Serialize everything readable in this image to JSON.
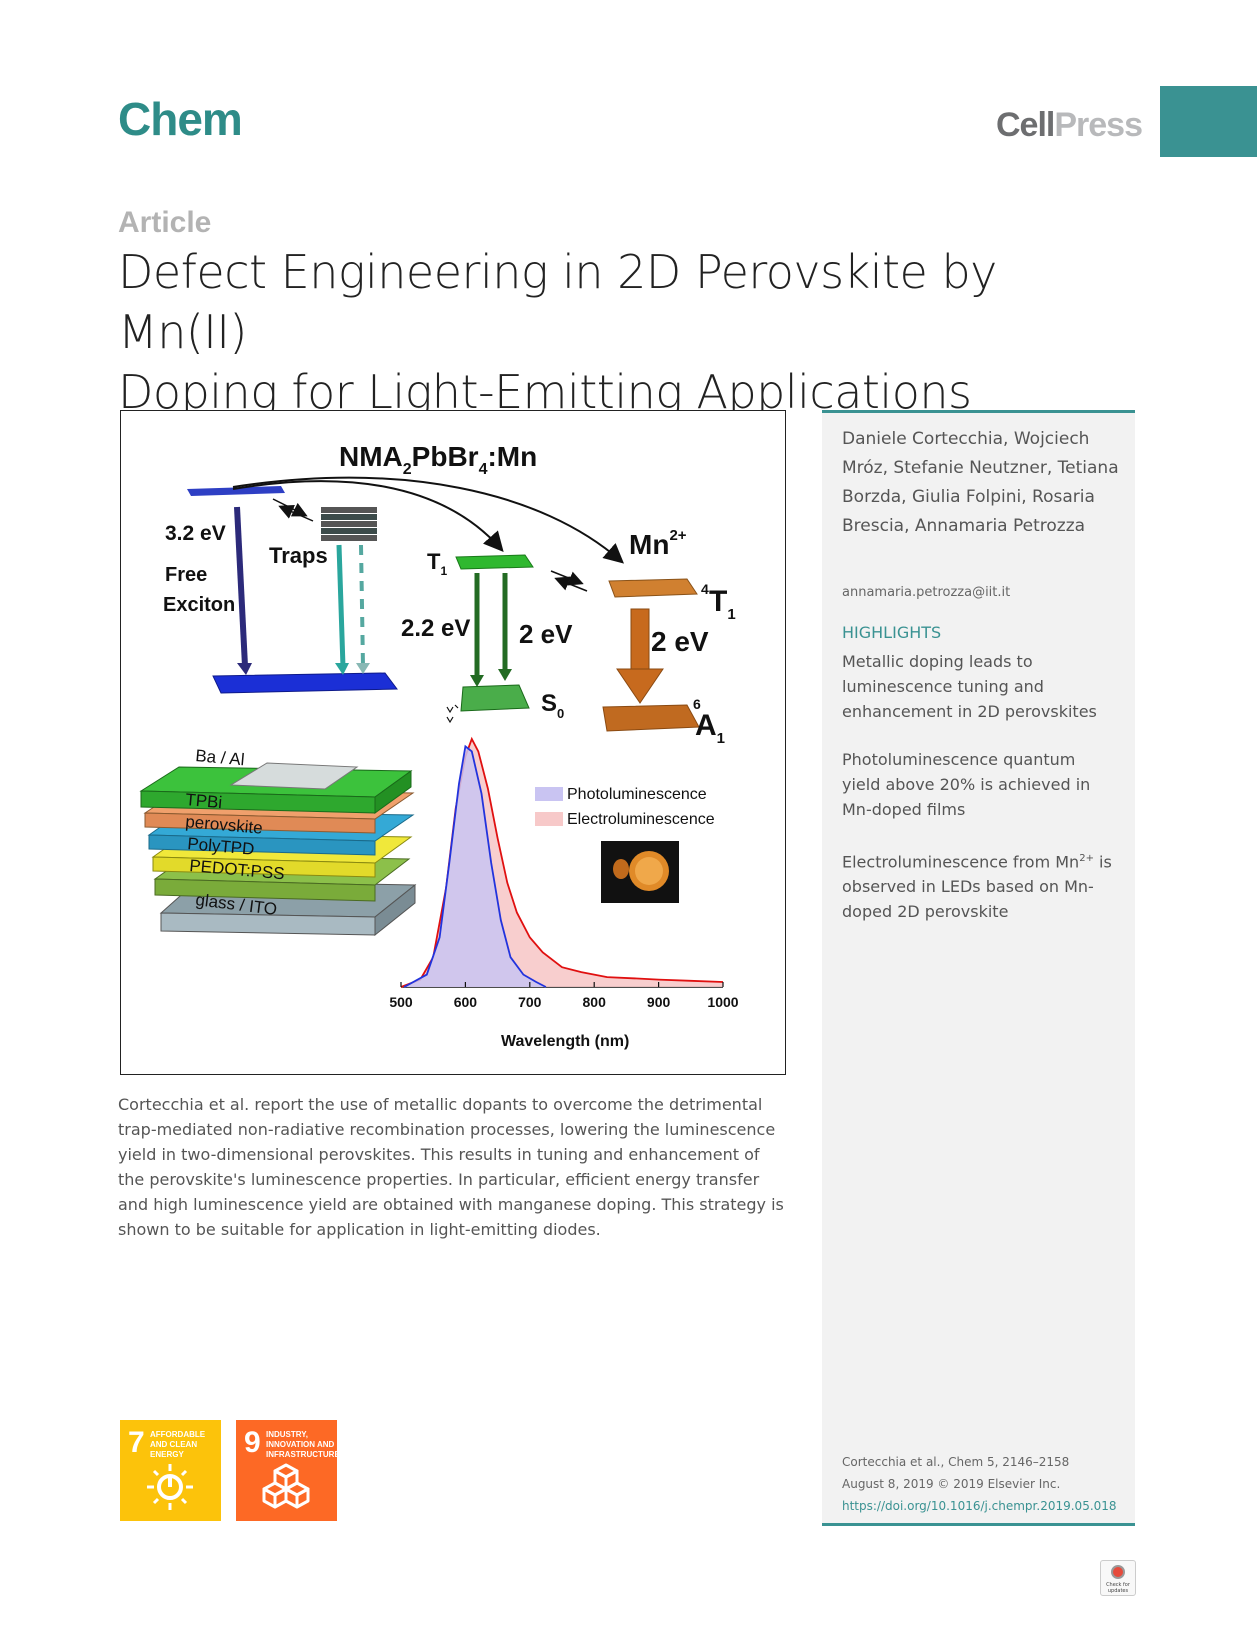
{
  "header": {
    "journal": "Chem",
    "publisher_part1": "Cell",
    "publisher_part2": "Press"
  },
  "article_type": "Article",
  "title_line1": "Defect Engineering in 2D Perovskite by Mn(II)",
  "title_line2": "Doping for Light-Emitting Applications",
  "figure": {
    "formula": "NMA",
    "formula_sub1": "2",
    "formula_mid": "PbBr",
    "formula_sub2": "4",
    "formula_end": ":Mn",
    "energy_free": "3.2 eV",
    "label_free1": "Free",
    "label_free2": "Exciton",
    "label_traps": "Traps",
    "label_t1": "T",
    "label_t1_sub": "1",
    "energy_t1": "2.2 eV",
    "energy_t1b": "2 eV",
    "label_s0": "S",
    "label_s0_sub": "0",
    "label_mn": "Mn",
    "label_mn_sup": "2+",
    "label_4t1_sup": "4",
    "label_4t1": "T",
    "label_4t1_sub": "1",
    "energy_mn": "2 eV",
    "label_6a1_sup": "6",
    "label_6a1": "A",
    "label_6a1_sub": "1",
    "led_layers": [
      "Ba / Al",
      "TPBi",
      "perovskite",
      "PolyTPD",
      "PEDOT:PSS",
      "glass / ITO"
    ],
    "colors": {
      "pl": "#c9c4f2",
      "el": "#f7c9c9",
      "pl_line": "#2233dd",
      "el_line": "#e01010"
    }
  },
  "chart_data": {
    "type": "area",
    "xlabel": "Wavelength (nm)",
    "ylabel": "",
    "xlim": [
      500,
      1000
    ],
    "xticks": [
      500,
      600,
      700,
      800,
      900,
      1000
    ],
    "legend": [
      "Photoluminescence",
      "Electroluminescence"
    ],
    "series": [
      {
        "name": "Photoluminescence",
        "x": [
          505,
          540,
          560,
          575,
          590,
          600,
          610,
          625,
          640,
          655,
          670,
          690,
          710,
          725
        ],
        "y": [
          0.0,
          0.05,
          0.2,
          0.5,
          0.82,
          0.97,
          0.95,
          0.78,
          0.5,
          0.27,
          0.12,
          0.05,
          0.02,
          0.0
        ]
      },
      {
        "name": "Electroluminescence",
        "x": [
          500,
          530,
          550,
          570,
          585,
          600,
          610,
          620,
          635,
          650,
          665,
          680,
          700,
          720,
          750,
          780,
          820,
          860,
          900,
          950,
          1000
        ],
        "y": [
          0.0,
          0.03,
          0.12,
          0.4,
          0.72,
          0.93,
          1.0,
          0.95,
          0.8,
          0.6,
          0.42,
          0.3,
          0.2,
          0.14,
          0.08,
          0.06,
          0.04,
          0.035,
          0.03,
          0.025,
          0.02
        ]
      }
    ]
  },
  "summary": "Cortecchia et al. report the use of metallic dopants to overcome the detrimental trap-mediated non-radiative recombination processes, lowering the luminescence yield in two-dimensional perovskites. This results in tuning and enhancement of the perovskite's luminescence properties. In particular, efficient energy transfer and high luminescence yield are obtained with manganese doping. This strategy is shown to be suitable for application in light-emitting diodes.",
  "sidebar": {
    "authors": "Daniele Cortecchia, Wojciech Mróz, Stefanie Neutzner, Tetiana Borzda, Giulia Folpini, Rosaria Brescia, Annamaria Petrozza",
    "email": "annamaria.petrozza@iit.it",
    "highlights_heading": "HIGHLIGHTS",
    "highlight1": "Metallic doping leads to luminescence tuning and enhancement in 2D perovskites",
    "highlight2": "Photoluminescence quantum yield above 20% is achieved in Mn-doped films",
    "highlight3_pre": "Electroluminescence from Mn",
    "highlight3_sup": "2+",
    "highlight3_post": " is observed in LEDs based on Mn-doped 2D perovskite",
    "citation1": "Cortecchia et al., Chem 5, 2146–2158",
    "citation2": "August 8, 2019 © 2019 Elsevier Inc.",
    "doi": "https://doi.org/10.1016/j.chempr.2019.05.018"
  },
  "sdg": {
    "sdg7_num": "7",
    "sdg7_label": "AFFORDABLE AND CLEAN ENERGY",
    "sdg9_num": "9",
    "sdg9_label": "INDUSTRY, INNOVATION AND INFRASTRUCTURE"
  },
  "badge": "Check for updates"
}
